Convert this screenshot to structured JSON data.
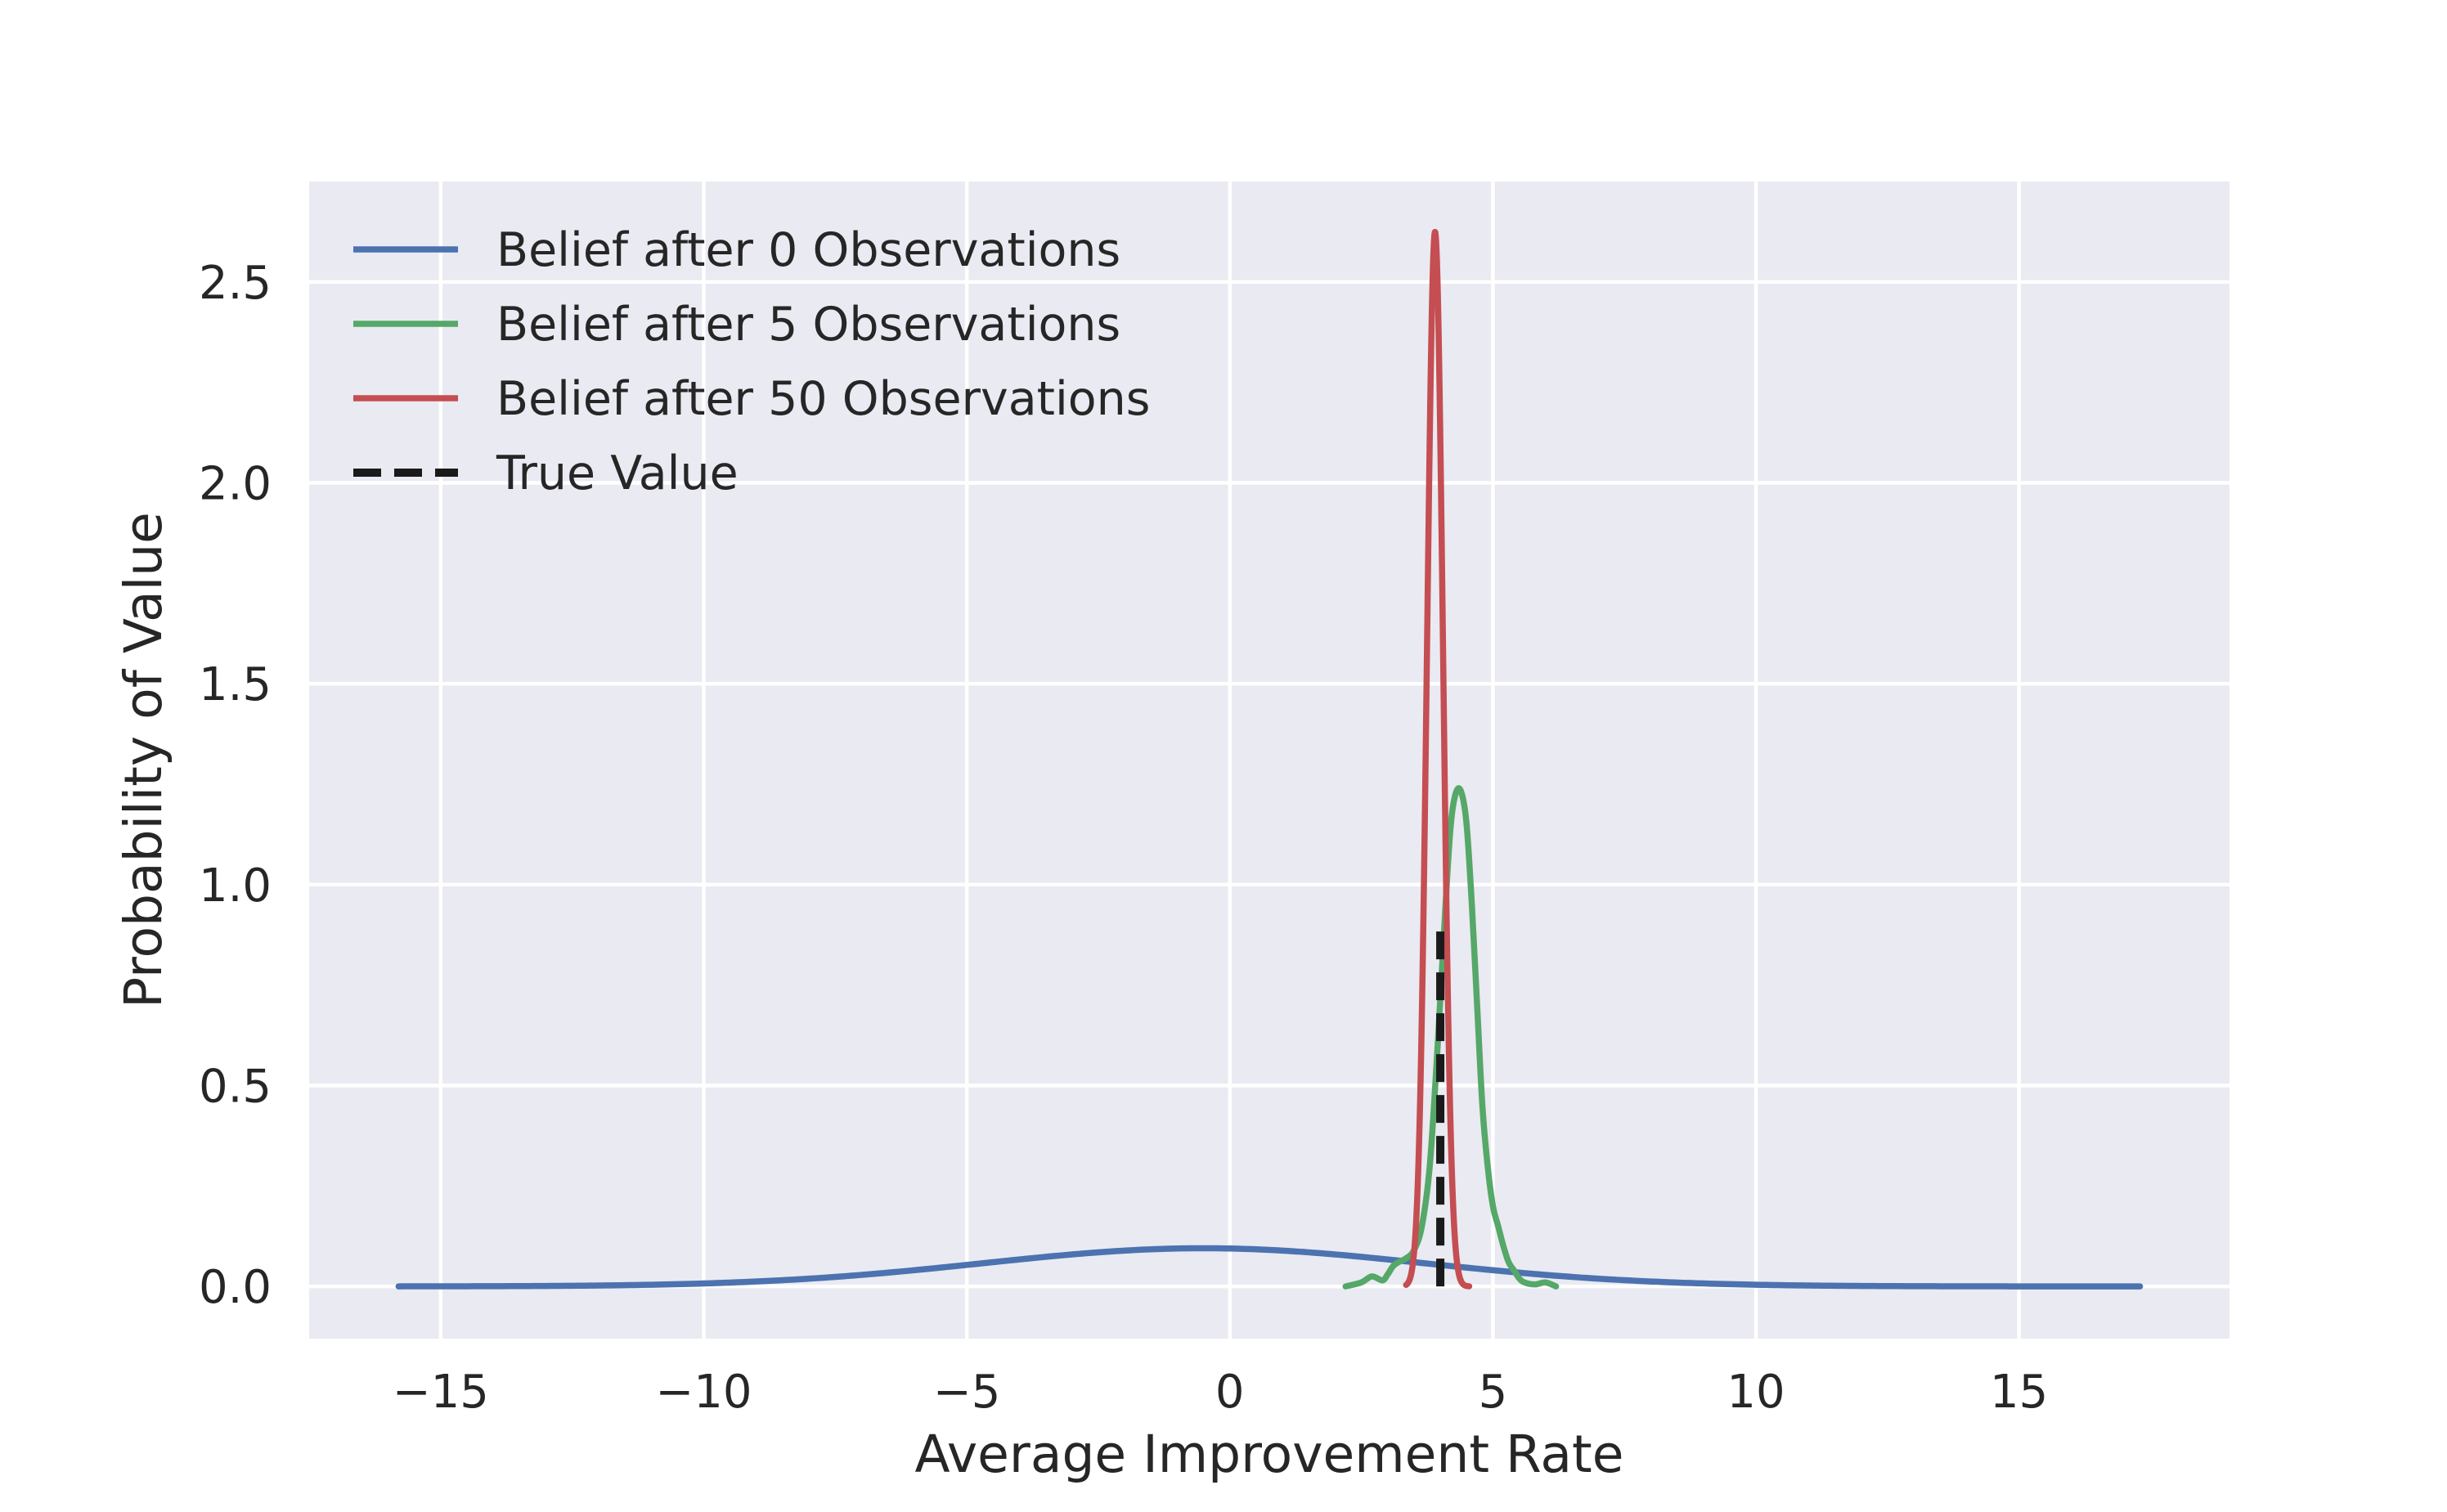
{
  "chart_data": {
    "type": "line",
    "title": "",
    "xlabel": "Average Improvement Rate",
    "ylabel": "Probability of Value",
    "xlim": [
      -17.5,
      19
    ],
    "ylim": [
      -0.13,
      2.75
    ],
    "x_ticks": [
      -15,
      -10,
      -5,
      0,
      5,
      10,
      15
    ],
    "x_tick_labels": [
      "−15",
      "−10",
      "−5",
      "0",
      "5",
      "10",
      "15"
    ],
    "y_ticks": [
      0.0,
      0.5,
      1.0,
      1.5,
      2.0,
      2.5
    ],
    "y_tick_labels": [
      "0.0",
      "0.5",
      "1.0",
      "1.5",
      "2.0",
      "2.5"
    ],
    "grid": true,
    "background": "#EAEAF2",
    "legend_placement": "upper-left",
    "series": [
      {
        "name": "Belief after 0 Observations",
        "color": "#4C72B0",
        "style": "solid",
        "kind": "normal",
        "mean": -0.5,
        "std": 4.2,
        "x_range": [
          -15.8,
          17.3
        ]
      },
      {
        "name": "Belief after 5 Observations",
        "color": "#55A868",
        "style": "solid",
        "kind": "points",
        "x": [
          2.2,
          2.5,
          2.7,
          2.9,
          3.0,
          3.1,
          3.2,
          3.35,
          3.5,
          3.65,
          3.8,
          3.95,
          4.1,
          4.2,
          4.3,
          4.4,
          4.5,
          4.6,
          4.7,
          4.8,
          4.9,
          5.0,
          5.1,
          5.2,
          5.3,
          5.4,
          5.5,
          5.6,
          5.8,
          6.0,
          6.2
        ],
        "y": [
          0.0,
          0.01,
          0.025,
          0.015,
          0.03,
          0.05,
          0.06,
          0.07,
          0.09,
          0.15,
          0.3,
          0.6,
          0.95,
          1.15,
          1.23,
          1.23,
          1.15,
          0.95,
          0.7,
          0.45,
          0.3,
          0.2,
          0.15,
          0.1,
          0.06,
          0.04,
          0.02,
          0.01,
          0.005,
          0.01,
          0.0
        ]
      },
      {
        "name": "Belief after 50 Observations",
        "color": "#C44E52",
        "style": "solid",
        "kind": "normal",
        "mean": 3.9,
        "std": 0.152,
        "x_range": [
          3.35,
          4.55
        ]
      },
      {
        "name": "True Value",
        "color": "#1a1a1a",
        "style": "dashed",
        "kind": "vline",
        "x": 4.0,
        "y_range": [
          0.0,
          0.9
        ]
      }
    ]
  }
}
